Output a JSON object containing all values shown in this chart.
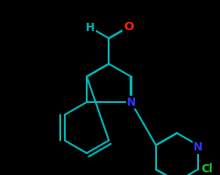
{
  "background_color": "#000000",
  "bond_color": "#00BBBB",
  "bond_width": 1.4,
  "atom_colors": {
    "N": "#3333FF",
    "O": "#FF2200",
    "Cl": "#22CC22",
    "H": "#00BBBB",
    "C": "#00BBBB"
  },
  "font_size": 8.5,
  "figsize": [
    2.41,
    1.92
  ],
  "dpi": 100
}
